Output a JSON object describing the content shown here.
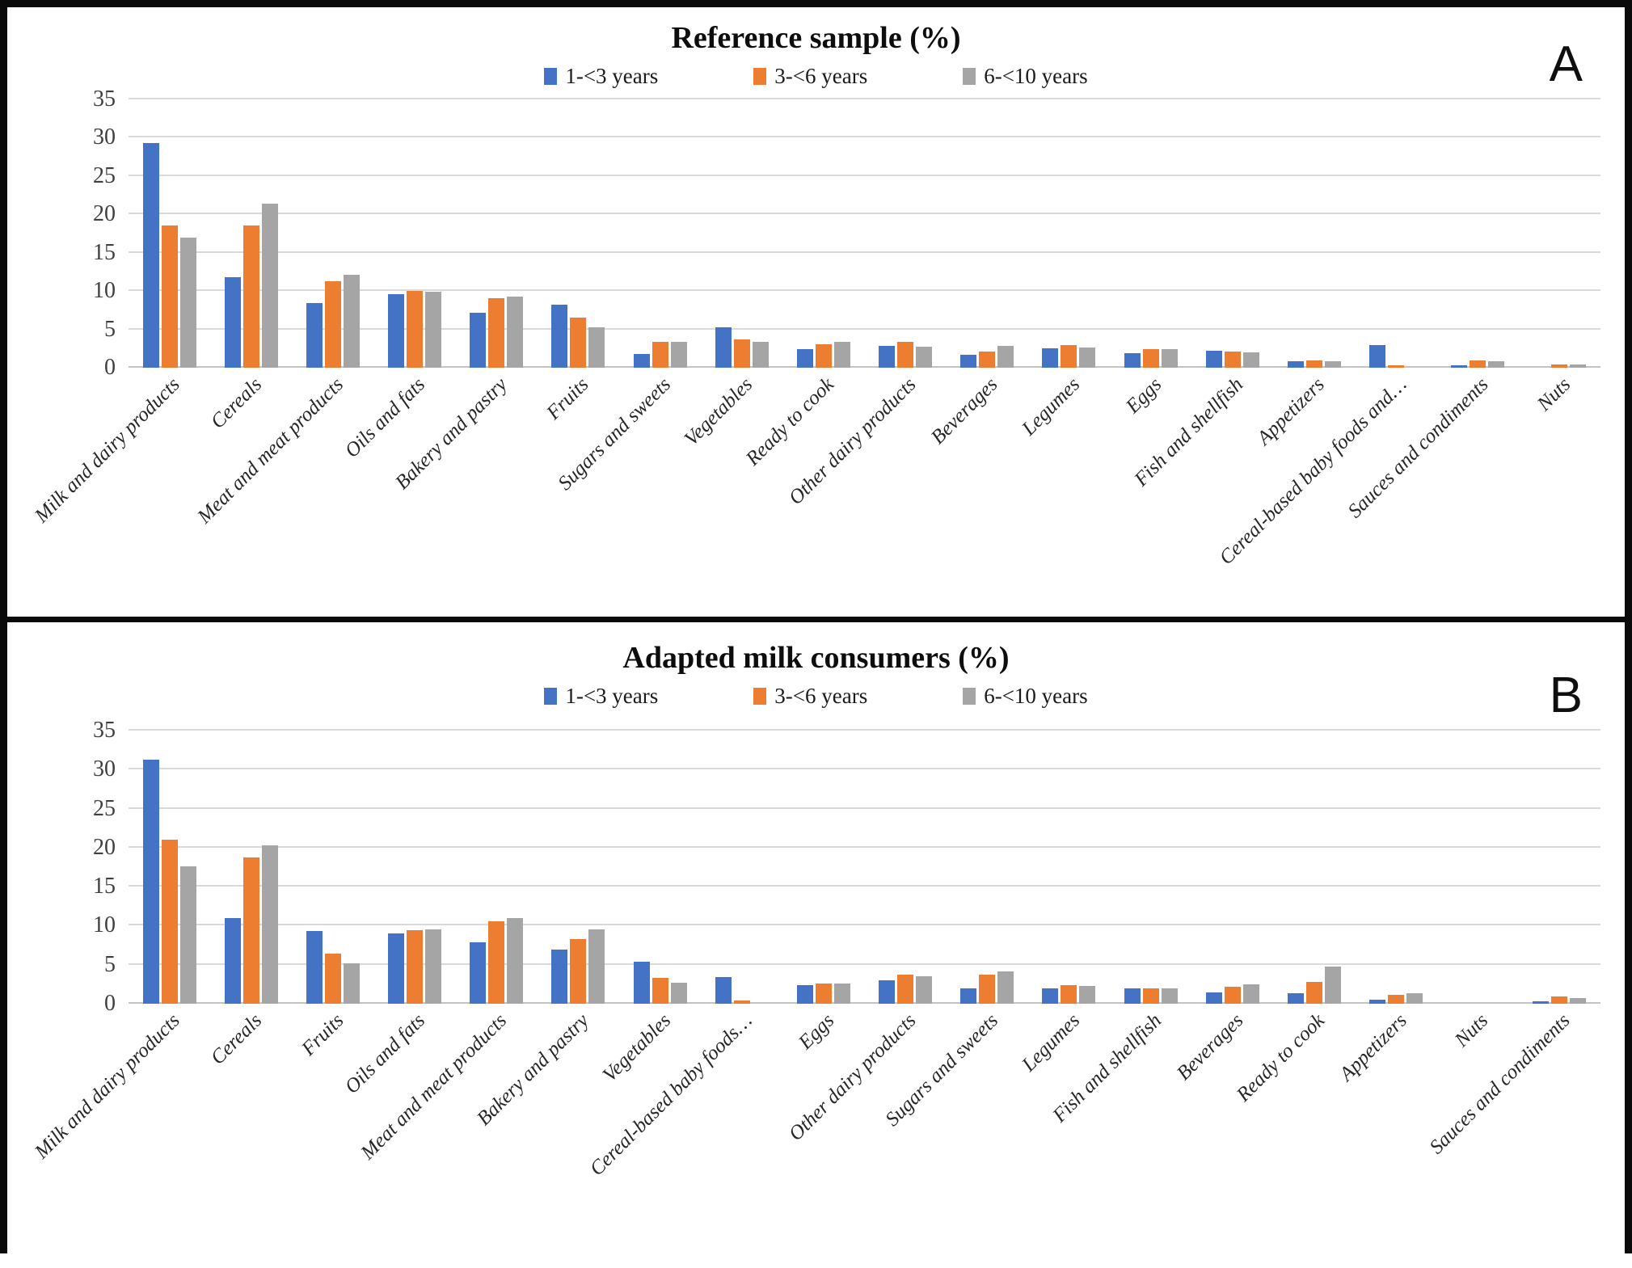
{
  "figure": {
    "panels": [
      {
        "letter": "A"
      },
      {
        "letter": "B"
      }
    ]
  },
  "chart_data": [
    {
      "type": "bar",
      "title": "Reference sample (%)",
      "ylabel": "",
      "xlabel": "",
      "ylim": [
        0,
        35
      ],
      "yticks": [
        0,
        5,
        10,
        15,
        20,
        25,
        30,
        35
      ],
      "grid": true,
      "legend_position": "top",
      "categories": [
        "Milk and dairy products",
        "Cereals",
        "Meat and meat products",
        "Oils and fats",
        "Bakery and pastry",
        "Fruits",
        "Sugars and sweets",
        "Vegetables",
        "Ready to cook",
        "Other dairy products",
        "Beverages",
        "Legumes",
        "Eggs",
        "Fish and shellfish",
        "Appetizers",
        "Cereal-based baby foods and…",
        "Sauces and condiments",
        "Nuts"
      ],
      "series": [
        {
          "name": "1-<3 years",
          "color": "#4472C4",
          "values": [
            29.3,
            11.8,
            8.4,
            9.6,
            7.2,
            8.2,
            1.8,
            5.3,
            2.4,
            2.9,
            1.7,
            2.5,
            1.9,
            2.2,
            0.8,
            3.0,
            0.3,
            0
          ]
        },
        {
          "name": "3-<6 years",
          "color": "#ED7D31",
          "values": [
            18.6,
            18.6,
            11.3,
            10.0,
            9.1,
            6.5,
            3.4,
            3.7,
            3.1,
            3.4,
            2.1,
            3.0,
            2.4,
            2.1,
            1.0,
            0.3,
            0.9,
            0.4
          ]
        },
        {
          "name": "6-<10 years",
          "color": "#A5A5A5",
          "values": [
            17.0,
            21.4,
            12.1,
            9.9,
            9.3,
            5.3,
            3.4,
            3.4,
            3.4,
            2.7,
            2.8,
            2.6,
            2.4,
            2.0,
            0.8,
            0,
            0.8,
            0.4
          ]
        }
      ]
    },
    {
      "type": "bar",
      "title": "Adapted milk consumers (%)",
      "ylabel": "",
      "xlabel": "",
      "ylim": [
        0,
        35
      ],
      "yticks": [
        0,
        5,
        10,
        15,
        20,
        25,
        30,
        35
      ],
      "grid": true,
      "legend_position": "top",
      "categories": [
        "Milk and dairy products",
        "Cereals",
        "Fruits",
        "Oils and fats",
        "Meat and meat products",
        "Bakery and pastry",
        "Vegetables",
        "Cereal-based baby foods…",
        "Eggs",
        "Other dairy products",
        "Sugars and sweets",
        "Legumes",
        "Fish and shellfish",
        "Beverages",
        "Ready to cook",
        "Appetizers",
        "Nuts",
        "Sauces and condiments"
      ],
      "series": [
        {
          "name": "1-<3 years",
          "color": "#4472C4",
          "values": [
            31.3,
            11.0,
            9.3,
            9.0,
            7.9,
            6.9,
            5.4,
            3.4,
            2.4,
            3.0,
            2.0,
            2.0,
            2.0,
            1.4,
            1.3,
            0.5,
            0,
            0.3
          ]
        },
        {
          "name": "3-<6 years",
          "color": "#ED7D31",
          "values": [
            21.0,
            18.7,
            6.4,
            9.4,
            10.6,
            8.3,
            3.3,
            0.4,
            2.6,
            3.7,
            3.7,
            2.4,
            2.0,
            2.2,
            2.8,
            1.1,
            0,
            0.9
          ]
        },
        {
          "name": "6-<10 years",
          "color": "#A5A5A5",
          "values": [
            17.6,
            20.3,
            5.2,
            9.5,
            11.0,
            9.5,
            2.7,
            0,
            2.6,
            3.5,
            4.1,
            2.3,
            2.0,
            2.5,
            4.8,
            1.3,
            0,
            0.7
          ]
        }
      ]
    }
  ]
}
